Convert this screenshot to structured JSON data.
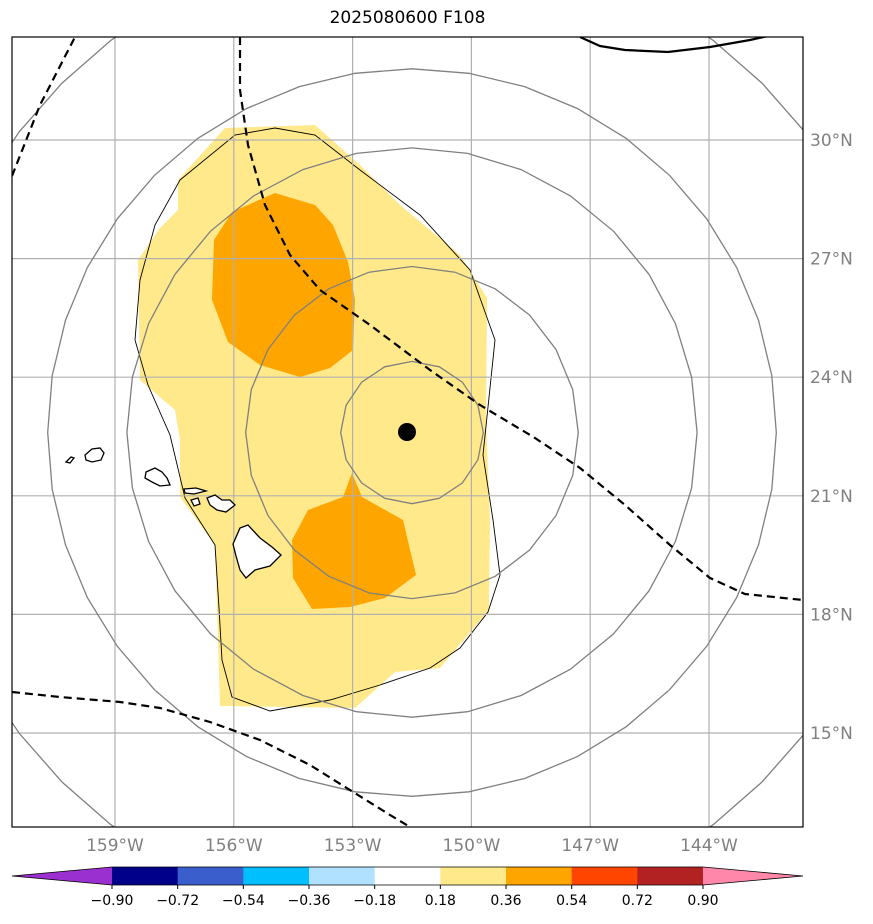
{
  "title": "2025080600 F108",
  "map": {
    "lon_range": [
      -161.5,
      -141.5
    ],
    "lat_range": [
      12.6,
      32.6
    ],
    "lon_ticks": [
      {
        "value": -159,
        "label": "159°W"
      },
      {
        "value": -156,
        "label": "156°W"
      },
      {
        "value": -153,
        "label": "153°W"
      },
      {
        "value": -150,
        "label": "150°W"
      },
      {
        "value": -147,
        "label": "147°W"
      },
      {
        "value": -144,
        "label": "144°W"
      }
    ],
    "lat_ticks": [
      {
        "value": 30,
        "label": "30°N"
      },
      {
        "value": 27,
        "label": "27°N"
      },
      {
        "value": 24,
        "label": "24°N"
      },
      {
        "value": 21,
        "label": "21°N"
      },
      {
        "value": 18,
        "label": "18°N"
      },
      {
        "value": 15,
        "label": "15°N"
      }
    ],
    "center_marker": {
      "lon": -151.5,
      "lat": 22.6
    },
    "range_rings_deg": [
      1.8,
      4.2,
      7.2,
      9.2,
      12.5
    ]
  },
  "colorbar": {
    "ticks": [
      "−0.90",
      "−0.72",
      "−0.54",
      "−0.36",
      "−0.18",
      "0.18",
      "0.36",
      "0.54",
      "0.72",
      "0.90"
    ],
    "colors": [
      "#9b30d0",
      "#00008b",
      "#3a5fcd",
      "#00bfff",
      "#b0e2ff",
      "#ffffff",
      "#ffe98a",
      "#ffa500",
      "#ff4500",
      "#b22222",
      "#ff88aa"
    ]
  },
  "colors": {
    "low_fill": "#ffe98a",
    "high_fill": "#ffa500",
    "grid": "#b0b0b0",
    "ring": "#808080"
  }
}
